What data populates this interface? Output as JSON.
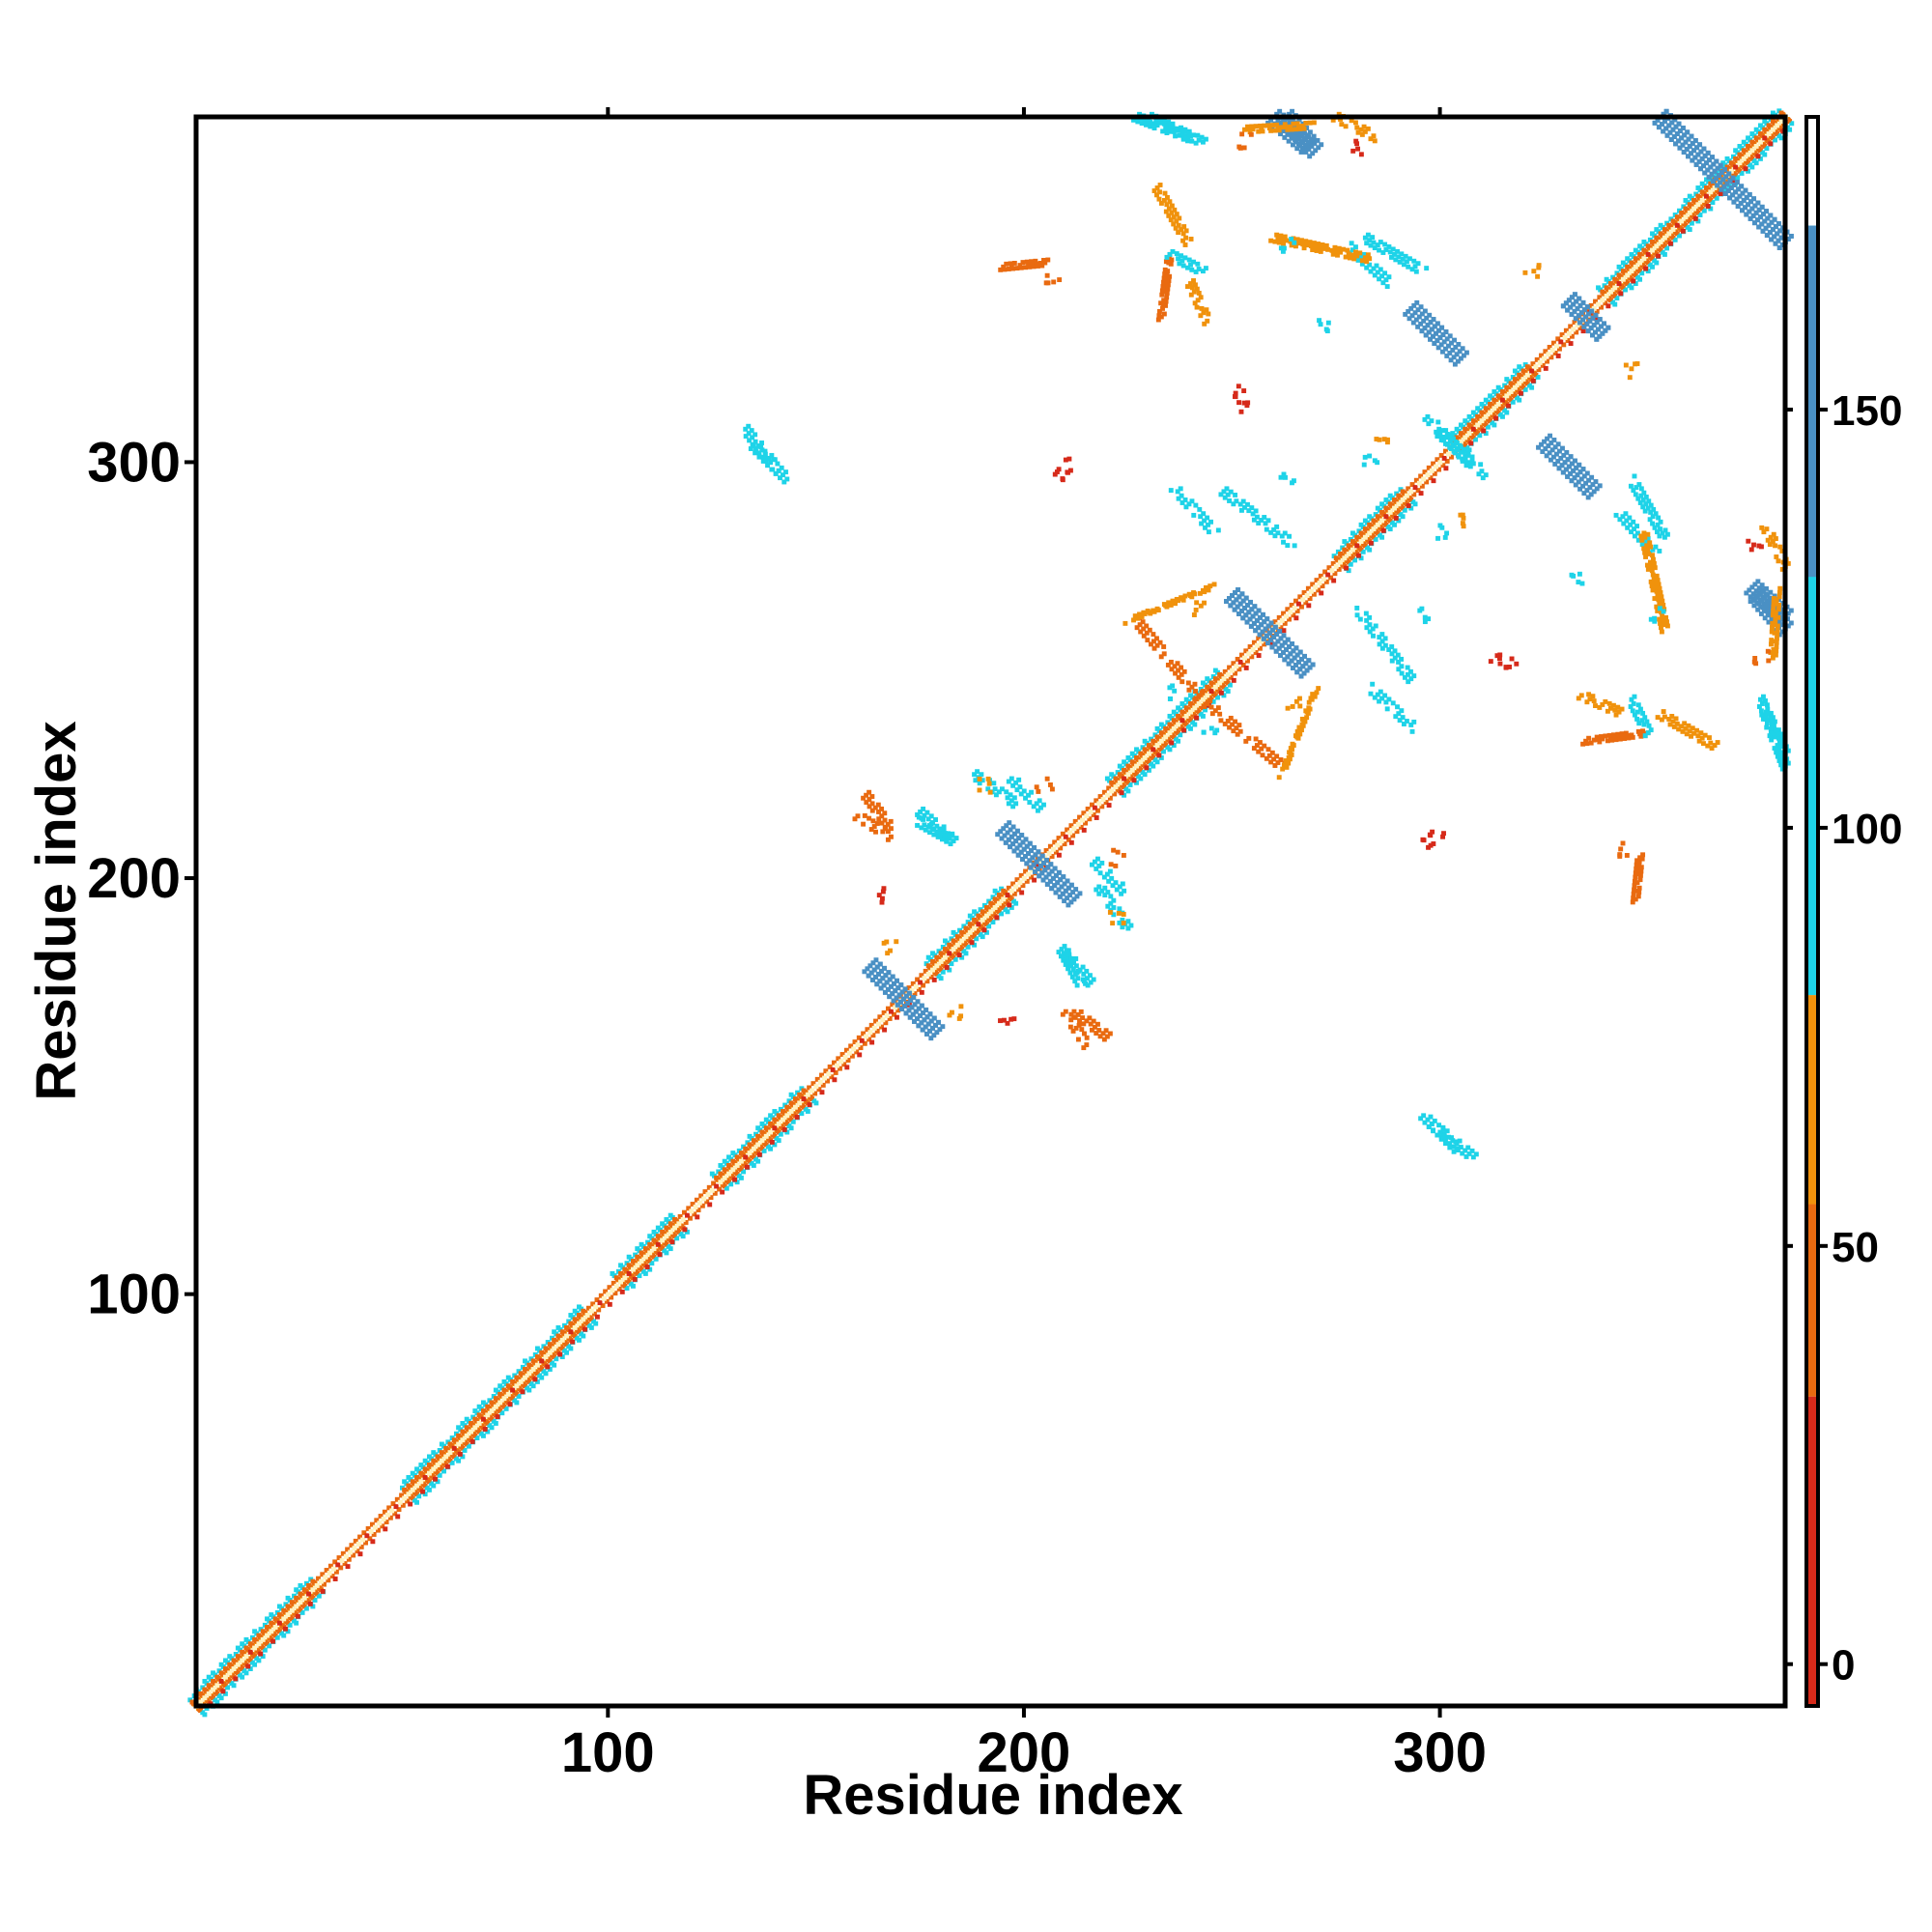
{
  "chart_data": {
    "type": "heatmap",
    "title": "",
    "xlabel": "Residue index",
    "ylabel": "Residue index",
    "xlim": [
      1,
      383
    ],
    "ylim": [
      1,
      383
    ],
    "x_ticks": [
      100,
      200,
      300
    ],
    "y_ticks": [
      100,
      200,
      300
    ],
    "colorbar": {
      "ticks": [
        0,
        50,
        100,
        150
      ],
      "range": [
        -5,
        185
      ],
      "bands": [
        {
          "from": -5,
          "to": 30,
          "color": "#d62a1a"
        },
        {
          "from": 30,
          "to": 80,
          "color": "#e96a10"
        },
        {
          "from": 80,
          "to": 100,
          "color": "#f0920c"
        },
        {
          "from": 100,
          "to": 95,
          "color": "#f0920c"
        },
        {
          "from": 80,
          "to": 172,
          "color": "#1ed3e8"
        },
        {
          "from": 172,
          "to": 185,
          "color": "#ffffff"
        }
      ],
      "band_colors_note": "low=red, mid=orange, high=cyan/steel-blue, top=white"
    },
    "colors": {
      "very_low": "#d62a1a",
      "low": "#e96a10",
      "mid": "#f0920c",
      "high": "#1ed3e8",
      "very_high": "#4a90c4"
    },
    "diagonal": {
      "from": 1,
      "to": 383
    },
    "helix_segments": [
      [
        1,
        30
      ],
      [
        52,
        95
      ],
      [
        103,
        117
      ],
      [
        127,
        148
      ],
      [
        178,
        196
      ],
      [
        222,
        248
      ],
      [
        276,
        292
      ],
      [
        304,
        322
      ],
      [
        340,
        383
      ]
    ],
    "strand_pairs": [
      {
        "x": [
          163,
          178
        ],
        "y": [
          179,
          164
        ],
        "color": "very_high",
        "kind": "antiparallel"
      },
      {
        "x": [
          197,
          212
        ],
        "y": [
          210,
          195
        ],
        "color": "very_high",
        "kind": "antiparallel"
      },
      {
        "x": [
          250,
          268
        ],
        "y": [
          268,
          250
        ],
        "color": "very_high",
        "kind": "antiparallel"
      },
      {
        "x": [
          331,
          339
        ],
        "y": [
          339,
          331
        ],
        "color": "very_high",
        "kind": "antiparallel"
      },
      {
        "x": [
          353,
          383
        ],
        "y": [
          383,
          353
        ],
        "color": "very_high",
        "kind": "antiparallel"
      },
      {
        "x": [
          260,
          268
        ],
        "y": [
          383,
          376
        ],
        "color": "very_high",
        "kind": "antiparallel"
      },
      {
        "x": [
          293,
          300
        ],
        "y": [
          337,
          330
        ],
        "color": "very_high",
        "kind": "antiparallel"
      },
      {
        "x": [
          325,
          333
        ],
        "y": [
          305,
          297
        ],
        "color": "very_high",
        "kind": "antiparallel"
      },
      {
        "x": [
          375,
          383
        ],
        "y": [
          270,
          263
        ],
        "color": "very_high",
        "kind": "antiparallel"
      },
      {
        "x": [
          278,
          288
        ],
        "y": [
          352,
          343
        ],
        "color": "high",
        "kind": "antiparallel"
      },
      {
        "x": [
          188,
          198
        ],
        "y": [
          225,
          218
        ],
        "color": "high",
        "kind": "antiparallel"
      },
      {
        "x": [
          217,
          224
        ],
        "y": [
          204,
          197
        ],
        "color": "high",
        "kind": "antiparallel"
      },
      {
        "x": [
          210,
          216
        ],
        "y": [
          182,
          175
        ],
        "color": "high",
        "kind": "antiparallel"
      },
      {
        "x": [
          174,
          183
        ],
        "y": [
          214,
          209
        ],
        "color": "high",
        "kind": "antiparallel"
      },
      {
        "x": [
          280,
          293
        ],
        "y": [
          265,
          248
        ],
        "color": "high",
        "kind": "antiparallel"
      },
      {
        "x": [
          236,
          246
        ],
        "y": [
          294,
          283
        ],
        "color": "high",
        "kind": "antiparallel"
      },
      {
        "x": [
          346,
          354
        ],
        "y": [
          296,
          282
        ],
        "color": "high",
        "kind": "antiparallel"
      },
      {
        "x": [
          377,
          383
        ],
        "y": [
          243,
          230
        ],
        "color": "high",
        "kind": "antiparallel"
      },
      {
        "x": [
          160,
          168
        ],
        "y": [
          215,
          210
        ],
        "color": "low",
        "kind": "antiparallel"
      },
      {
        "x": [
          212,
          220
        ],
        "y": [
          168,
          162
        ],
        "color": "low",
        "kind": "antiparallel"
      },
      {
        "x": [
          244,
          262
        ],
        "y": [
          242,
          227
        ],
        "color": "low",
        "kind": "antiparallel"
      },
      {
        "x": [
          225,
          245
        ],
        "y": [
          262,
          270
        ],
        "color": "mid",
        "kind": "parallel"
      },
      {
        "x": [
          335,
          350
        ],
        "y": [
          233,
          235
        ],
        "color": "low",
        "kind": "parallel"
      },
      {
        "x": [
          334,
          343
        ],
        "y": [
          244,
          240
        ],
        "color": "mid",
        "kind": "parallel"
      },
      {
        "x": [
          232,
          240
        ],
        "y": [
          366,
          352
        ],
        "color": "mid",
        "kind": "parallel"
      },
      {
        "x": [
          235,
          243
        ],
        "y": [
          350,
          346
        ],
        "color": "high",
        "kind": "parallel"
      },
      {
        "x": [
          227,
          240
        ],
        "y": [
          383,
          378
        ],
        "color": "high",
        "kind": "parallel"
      },
      {
        "x": [
          195,
          205
        ],
        "y": [
          347,
          348
        ],
        "color": "low",
        "kind": "parallel"
      },
      {
        "x": [
          133,
          141
        ],
        "y": [
          308,
          298
        ],
        "color": "high",
        "kind": "parallel"
      },
      {
        "x": [
          296,
          304
        ],
        "y": [
          143,
          135
        ],
        "color": "high",
        "kind": "parallel"
      },
      {
        "x": [
          300,
          311
        ],
        "y": [
          307,
          297
        ],
        "color": "high",
        "kind": "parallel"
      },
      {
        "x": [
          253,
          269
        ],
        "y": [
          380,
          381
        ],
        "color": "mid",
        "kind": "parallel"
      },
      {
        "x": [
          260,
          283
        ],
        "y": [
          354,
          349
        ],
        "color": "mid",
        "kind": "parallel"
      },
      {
        "x": [
          378,
          383
        ],
        "y": [
          285,
          275
        ],
        "color": "mid",
        "kind": "parallel"
      }
    ],
    "point_clusters": [
      {
        "x": 252,
        "y": 317,
        "color": "very_low"
      },
      {
        "x": 210,
        "y": 297,
        "color": "very_low"
      },
      {
        "x": 299,
        "y": 209,
        "color": "very_low"
      },
      {
        "x": 313,
        "y": 253,
        "color": "very_low"
      },
      {
        "x": 344,
        "y": 207,
        "color": "low"
      },
      {
        "x": 377,
        "y": 253,
        "color": "low"
      },
      {
        "x": 376,
        "y": 280,
        "color": "very_low"
      },
      {
        "x": 168,
        "y": 184,
        "color": "mid"
      },
      {
        "x": 196,
        "y": 165,
        "color": "very_low"
      },
      {
        "x": 222,
        "y": 190,
        "color": "mid"
      },
      {
        "x": 205,
        "y": 222,
        "color": "low"
      },
      {
        "x": 236,
        "y": 245,
        "color": "high"
      },
      {
        "x": 265,
        "y": 242,
        "color": "mid"
      },
      {
        "x": 296,
        "y": 263,
        "color": "high"
      },
      {
        "x": 300,
        "y": 283,
        "color": "high"
      },
      {
        "x": 352,
        "y": 263,
        "color": "high"
      },
      {
        "x": 305,
        "y": 286,
        "color": "mid"
      },
      {
        "x": 333,
        "y": 272,
        "color": "high"
      },
      {
        "x": 346,
        "y": 322,
        "color": "mid"
      }
    ]
  }
}
